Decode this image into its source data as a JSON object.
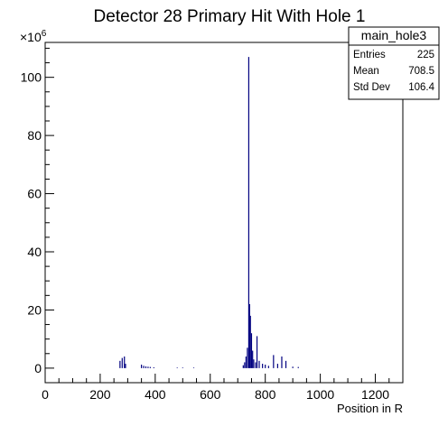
{
  "chart_data": {
    "type": "bar",
    "title": "Detector 28 Primary Hit With Hole 1",
    "xlabel": "Position in R",
    "ylabel": "",
    "xlim": [
      0,
      1300
    ],
    "ylim": [
      -5,
      112
    ],
    "y_multiplier_label": "×10",
    "y_multiplier_exp": "6",
    "x_ticks": [
      0,
      200,
      400,
      600,
      800,
      1000,
      1200
    ],
    "y_ticks": [
      0,
      20,
      40,
      60,
      80,
      100
    ],
    "grid": false,
    "legend": "none",
    "series_color": "#000080",
    "stats_box": {
      "title": "main_hole3",
      "rows": [
        {
          "label": "Entries",
          "value": "225"
        },
        {
          "label": "Mean",
          "value": "708.5"
        },
        {
          "label": "Std Dev",
          "value": "106.4"
        }
      ]
    },
    "bins": [
      {
        "x": 272,
        "y": 2.5
      },
      {
        "x": 280,
        "y": 3.5
      },
      {
        "x": 288,
        "y": 4.0
      },
      {
        "x": 292,
        "y": 1.5
      },
      {
        "x": 350,
        "y": 1.2
      },
      {
        "x": 358,
        "y": 0.8
      },
      {
        "x": 366,
        "y": 0.6
      },
      {
        "x": 374,
        "y": 0.5
      },
      {
        "x": 382,
        "y": 0.4
      },
      {
        "x": 395,
        "y": 0.3
      },
      {
        "x": 480,
        "y": 0.2
      },
      {
        "x": 500,
        "y": 0.2
      },
      {
        "x": 540,
        "y": 0.2
      },
      {
        "x": 720,
        "y": 1.0
      },
      {
        "x": 725,
        "y": 2.0
      },
      {
        "x": 730,
        "y": 4.0
      },
      {
        "x": 735,
        "y": 7.0
      },
      {
        "x": 740,
        "y": 107
      },
      {
        "x": 743,
        "y": 22
      },
      {
        "x": 746,
        "y": 18
      },
      {
        "x": 750,
        "y": 12
      },
      {
        "x": 754,
        "y": 6
      },
      {
        "x": 758,
        "y": 3
      },
      {
        "x": 765,
        "y": 2
      },
      {
        "x": 770,
        "y": 11
      },
      {
        "x": 778,
        "y": 2.5
      },
      {
        "x": 790,
        "y": 1.5
      },
      {
        "x": 800,
        "y": 1.2
      },
      {
        "x": 812,
        "y": 0.8
      },
      {
        "x": 830,
        "y": 4.5
      },
      {
        "x": 845,
        "y": 1.5
      },
      {
        "x": 860,
        "y": 4.0
      },
      {
        "x": 875,
        "y": 2.5
      },
      {
        "x": 900,
        "y": 0.5
      },
      {
        "x": 920,
        "y": 0.4
      }
    ]
  }
}
